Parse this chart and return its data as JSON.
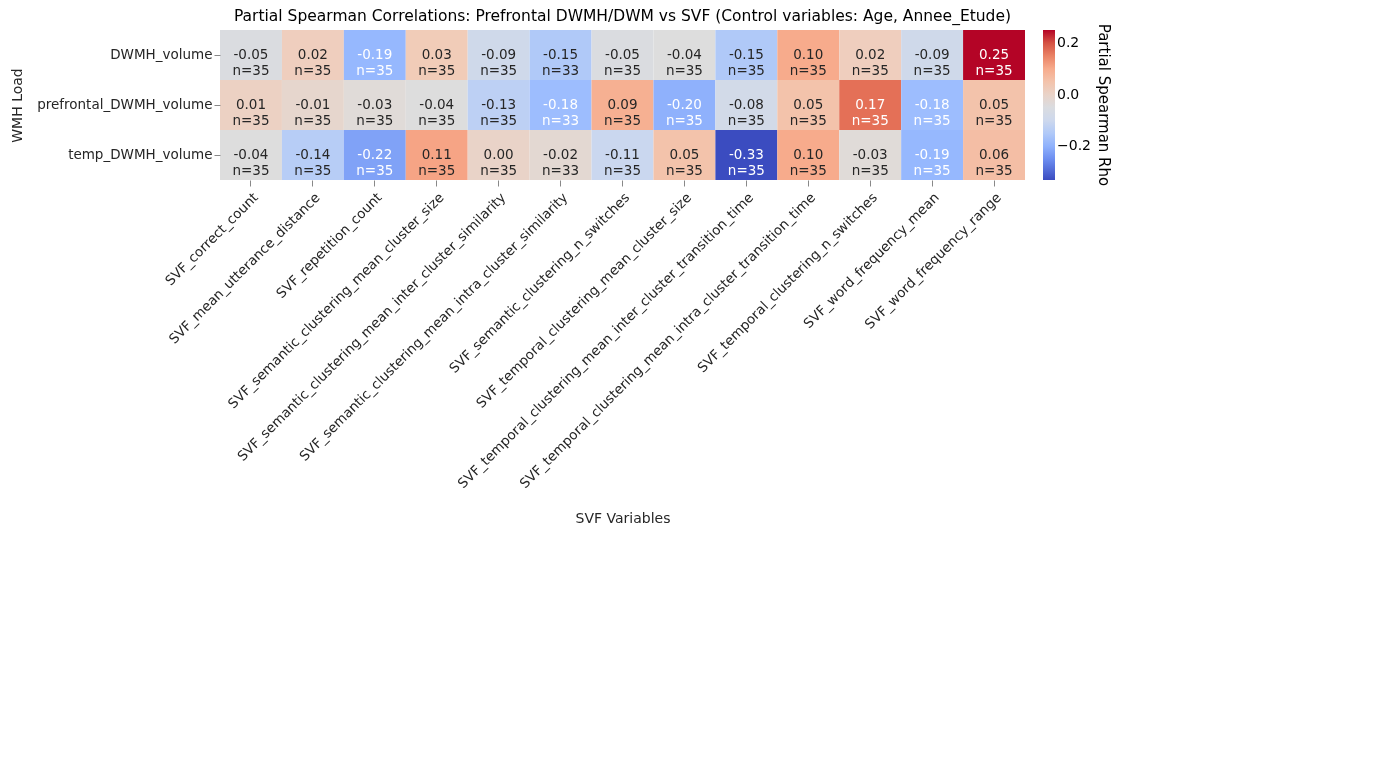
{
  "chart_data": {
    "type": "heatmap",
    "title": "Partial Spearman Correlations: Prefrontal DWMH/DWM vs SVF (Control variables: Age, Annee_Etude)",
    "xlabel": "SVF Variables",
    "ylabel": "WMH Load",
    "clabel": "Partial Spearman Rho",
    "categories": [
      "SVF_correct_count",
      "SVF_mean_utterance_distance",
      "SVF_repetition_count",
      "SVF_semantic_clustering_mean_cluster_size",
      "SVF_semantic_clustering_mean_inter_cluster_similarity",
      "SVF_semantic_clustering_mean_intra_cluster_similarity",
      "SVF_semantic_clustering_n_switches",
      "SVF_temporal_clustering_mean_cluster_size",
      "SVF_temporal_clustering_mean_inter_cluster_transition_time",
      "SVF_temporal_clustering_mean_intra_cluster_transition_time",
      "SVF_temporal_clustering_n_switches",
      "SVF_word_frequency_mean",
      "SVF_word_frequency_range"
    ],
    "y_categories": [
      "DWMH_volume",
      "prefrontal_DWMH_volume",
      "temp_DWMH_volume"
    ],
    "cells": [
      [
        -0.05,
        0.02,
        -0.19,
        0.03,
        -0.09,
        -0.15,
        -0.05,
        -0.04,
        -0.15,
        0.1,
        0.02,
        -0.09,
        0.25
      ],
      [
        0.01,
        -0.01,
        -0.03,
        -0.04,
        -0.13,
        -0.18,
        0.09,
        -0.2,
        -0.08,
        0.05,
        0.17,
        -0.18,
        0.05
      ],
      [
        -0.04,
        -0.14,
        -0.22,
        0.11,
        0.0,
        -0.02,
        -0.11,
        0.05,
        -0.33,
        0.1,
        -0.03,
        -0.19,
        0.06
      ]
    ],
    "cell_labels": [
      [
        "-0.05\nn=35",
        "0.02\nn=35",
        "-0.19\nn=35",
        "0.03\nn=35",
        "-0.09\nn=35",
        "-0.15\nn=33",
        "-0.05\nn=35",
        "-0.04\nn=35",
        "-0.15\nn=35",
        "0.10\nn=35",
        "0.02\nn=35",
        "-0.09\nn=35",
        "0.25\nn=35"
      ],
      [
        "0.01\nn=35",
        "-0.01\nn=35",
        "-0.03\nn=35",
        "-0.04\nn=35",
        "-0.13\nn=35",
        "-0.18\nn=33",
        "0.09\nn=35",
        "-0.20\nn=35",
        "-0.08\nn=35",
        "0.05\nn=35",
        "0.17\nn=35",
        "-0.18\nn=35",
        "0.05\nn=35"
      ],
      [
        "-0.04\nn=35",
        "-0.14\nn=35",
        "-0.22\nn=35",
        "0.11\nn=35",
        "0.00\nn=35",
        "-0.02\nn=33",
        "-0.11\nn=35",
        "0.05\nn=35",
        "-0.33\nn=35",
        "0.10\nn=35",
        "-0.03\nn=35",
        "-0.19\nn=35",
        "0.06\nn=35"
      ]
    ],
    "clim": [
      -0.33,
      0.25
    ],
    "cticks": [
      {
        "value": -0.2,
        "label": "−0.2"
      },
      {
        "value": 0.0,
        "label": "0.0"
      },
      {
        "value": 0.2,
        "label": "0.2"
      }
    ]
  }
}
